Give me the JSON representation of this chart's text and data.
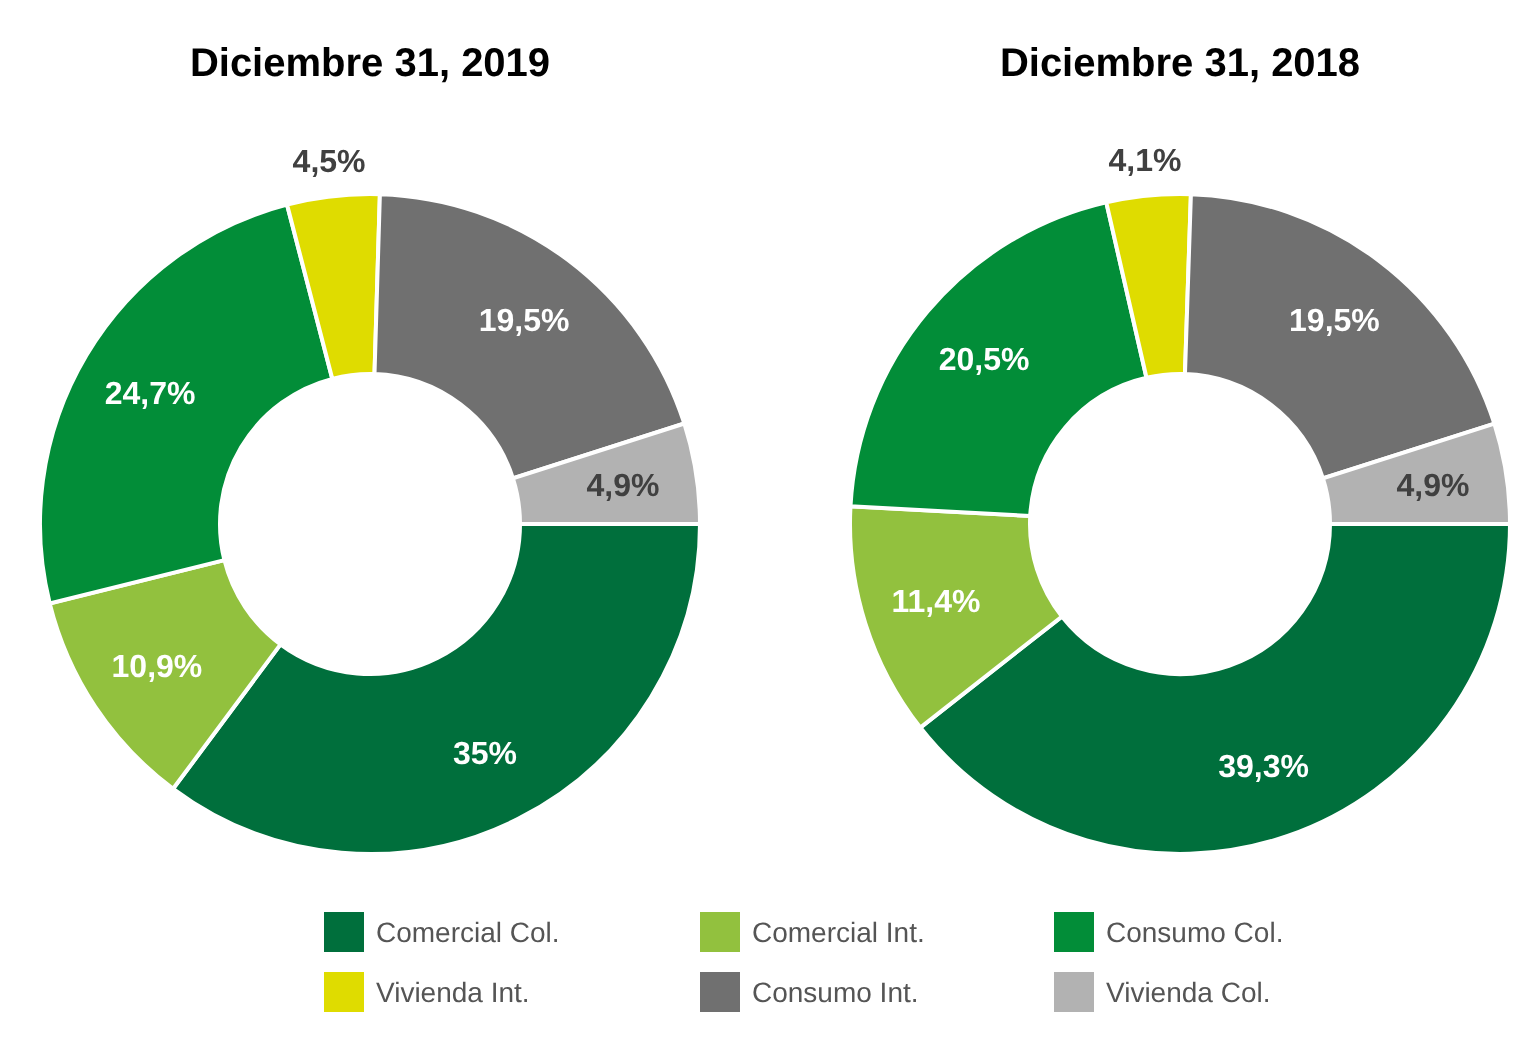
{
  "chart_data": [
    {
      "type": "donut",
      "title": "Diciembre 31, 2019",
      "legend": "bottom",
      "categories": [
        "Comercial Col.",
        "Comercial Int.",
        "Consumo Col.",
        "Vivienda Int.",
        "Consumo Int.",
        "Vivienda Col."
      ],
      "values": [
        35,
        10.9,
        24.7,
        4.5,
        19.5,
        4.9
      ],
      "colors": [
        "#006f3c",
        "#92c13e",
        "#028d38",
        "#dfdc00",
        "#707070",
        "#b2b2b2"
      ],
      "value_labels": [
        "35%",
        "10,9%",
        "24,7%",
        "4,5%",
        "19,5%",
        "4,9%"
      ]
    },
    {
      "type": "donut",
      "title": "Diciembre 31, 2018",
      "categories": [
        null,
        null,
        null,
        null,
        null,
        null
      ],
      "values": [
        39.3,
        11.4,
        20.5,
        4.1,
        19.5,
        4.9
      ],
      "colors": [
        "#006f3c",
        "#92c13e",
        "#028d38",
        "#dfdc00",
        "#707070",
        "#b2b2b2"
      ],
      "value_labels": [
        "39,3%",
        "11,4%",
        "20,5%",
        "4,1%",
        "19,5%",
        "4,9%"
      ]
    }
  ]
}
